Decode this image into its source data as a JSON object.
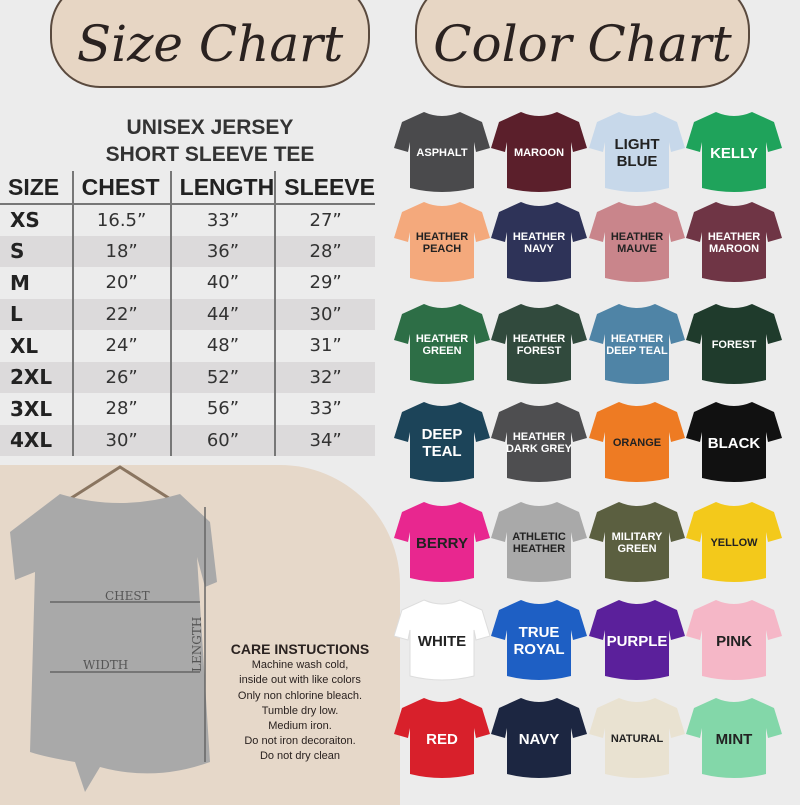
{
  "size_chart": {
    "title": "Size Chart",
    "subtitle_line1": "UNISEX JERSEY",
    "subtitle_line2": "SHORT SLEEVE TEE",
    "columns": [
      "SIZE",
      "CHEST",
      "LENGTH",
      "SLEEVE"
    ],
    "rows": [
      [
        "XS",
        "16.5”",
        "33”",
        "27”"
      ],
      [
        "S",
        "18”",
        "36”",
        "28”"
      ],
      [
        "M",
        "20”",
        "40”",
        "29”"
      ],
      [
        "L",
        "22”",
        "44”",
        "30”"
      ],
      [
        "XL",
        "24”",
        "48”",
        "31”"
      ],
      [
        "2XL",
        "26”",
        "52”",
        "32”"
      ],
      [
        "3XL",
        "28”",
        "56”",
        "33”"
      ],
      [
        "4XL",
        "30”",
        "60”",
        "34”"
      ]
    ]
  },
  "diagram": {
    "chest": "CHEST",
    "width": "WIDTH",
    "length": "LENGTH",
    "shirt_color": "#a9a9a9"
  },
  "care": {
    "title": "CARE INSTUCTIONS",
    "lines": [
      "Machine wash cold,",
      "inside out with like colors",
      "Only non chlorine bleach.",
      "Tumble dry low.",
      "Medium iron.",
      "Do not iron decoraiton.",
      "Do not dry clean"
    ]
  },
  "color_chart": {
    "title": "Color Chart",
    "colors": [
      {
        "name": "ASPHALT",
        "hex": "#4a4a4c",
        "text": "#ffffff"
      },
      {
        "name": "MAROON",
        "hex": "#5b1f2b",
        "text": "#ffffff"
      },
      {
        "name": "LIGHT BLUE",
        "hex": "#c7d8ea",
        "text": "#222222",
        "big": true
      },
      {
        "name": "KELLY",
        "hex": "#1fa35b",
        "text": "#ffffff",
        "big": true
      },
      {
        "name": "HEATHER PEACH",
        "hex": "#f4a97c",
        "text": "#222222"
      },
      {
        "name": "HEATHER NAVY",
        "hex": "#2e3358",
        "text": "#ffffff"
      },
      {
        "name": "HEATHER MAUVE",
        "hex": "#c9858b",
        "text": "#222222"
      },
      {
        "name": "HEATHER MAROON",
        "hex": "#6f3545",
        "text": "#ffffff"
      },
      {
        "name": "HEATHER GREEN",
        "hex": "#2d6e46",
        "text": "#ffffff"
      },
      {
        "name": "HEATHER FOREST",
        "hex": "#314a3d",
        "text": "#ffffff"
      },
      {
        "name": "HEATHER DEEP TEAL",
        "hex": "#4f84a6",
        "text": "#ffffff"
      },
      {
        "name": "FOREST",
        "hex": "#1f3b2c",
        "text": "#ffffff"
      },
      {
        "name": "DEEP TEAL",
        "hex": "#1c4459",
        "text": "#ffffff",
        "big": true
      },
      {
        "name": "HEATHER DARK GREY",
        "hex": "#4e4e50",
        "text": "#ffffff"
      },
      {
        "name": "ORANGE",
        "hex": "#ee7b23",
        "text": "#222222"
      },
      {
        "name": "BLACK",
        "hex": "#111111",
        "text": "#ffffff",
        "big": true
      },
      {
        "name": "BERRY",
        "hex": "#e8278f",
        "text": "#222222",
        "big": true
      },
      {
        "name": "ATHLETIC HEATHER",
        "hex": "#a9a9a9",
        "text": "#222222"
      },
      {
        "name": "MILITARY GREEN",
        "hex": "#5b5f40",
        "text": "#ffffff"
      },
      {
        "name": "YELLOW",
        "hex": "#f3c91b",
        "text": "#222222"
      },
      {
        "name": "WHITE",
        "hex": "#ffffff",
        "text": "#222222",
        "big": true
      },
      {
        "name": "TRUE ROYAL",
        "hex": "#1e5fc4",
        "text": "#ffffff",
        "big": true
      },
      {
        "name": "PURPLE",
        "hex": "#5b209b",
        "text": "#ffffff",
        "big": true
      },
      {
        "name": "PINK",
        "hex": "#f5b7c7",
        "text": "#222222",
        "big": true
      },
      {
        "name": "RED",
        "hex": "#d8202b",
        "text": "#ffffff",
        "big": true
      },
      {
        "name": "NAVY",
        "hex": "#1c2641",
        "text": "#ffffff",
        "big": true
      },
      {
        "name": "NATURAL",
        "hex": "#e9e2d1",
        "text": "#222222"
      },
      {
        "name": "MINT",
        "hex": "#83d7a9",
        "text": "#222222",
        "big": true
      }
    ]
  }
}
